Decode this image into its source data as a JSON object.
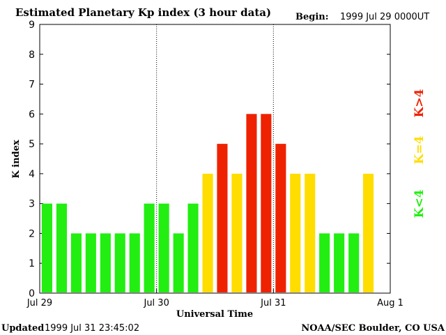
{
  "chart_data": {
    "type": "bar",
    "title": "Estimated Planetary Kp index (3 hour data)",
    "begin_label": "Begin:",
    "begin_value": "1999 Jul 29 0000UT",
    "xlabel": "Universal Time",
    "ylabel": "K index",
    "ylim": [
      0,
      9
    ],
    "yticks": [
      "0",
      "1",
      "2",
      "3",
      "4",
      "5",
      "6",
      "7",
      "8",
      "9"
    ],
    "xticks": [
      "Jul 29",
      "Jul 30",
      "Jul 31",
      "Aug 1"
    ],
    "bin_count": 24,
    "values": [
      3,
      3,
      2,
      2,
      2,
      2,
      2,
      3,
      3,
      2,
      3,
      4,
      5,
      4,
      6,
      6,
      5,
      4,
      4,
      2,
      2,
      2,
      4
    ],
    "color_scale": {
      "low": "#22ee11",
      "mid": "#ffdd00",
      "high": "#ee2200"
    },
    "legend": [
      {
        "label": "K<4",
        "color": "#22ee11"
      },
      {
        "label": "K=4",
        "color": "#ffdd00"
      },
      {
        "label": "K>4",
        "color": "#ee2200"
      }
    ],
    "grid": false
  },
  "footer": {
    "updated_label": "Updated",
    "updated_value": "1999 Jul 31 23:45:02",
    "credit": "NOAA/SEC Boulder, CO USA"
  }
}
